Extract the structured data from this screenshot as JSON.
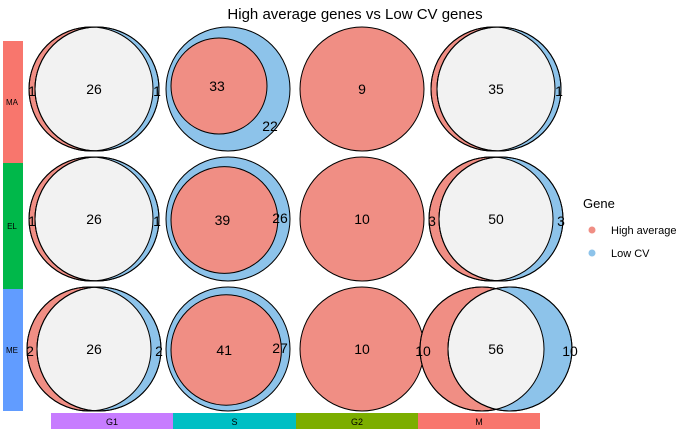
{
  "chart_data": {
    "type": "venn-grid",
    "title": "High average genes vs Low CV genes",
    "colors": {
      "high_average": "#F08E84",
      "low_cv": "#8DC3EA",
      "overlap": "#F2F2F2",
      "outline": "#000000"
    },
    "rows": [
      {
        "label": "MA",
        "color": "#F8766D"
      },
      {
        "label": "EL",
        "color": "#00B84A"
      },
      {
        "label": "ME",
        "color": "#619CFF"
      }
    ],
    "columns": [
      {
        "label": "G1",
        "color": "#C77CFF"
      },
      {
        "label": "S",
        "color": "#00BFC4"
      },
      {
        "label": "G2",
        "color": "#7CAE00"
      },
      {
        "label": "M",
        "color": "#F8766D"
      }
    ],
    "legend": {
      "title": "Gene",
      "position": "right",
      "items": [
        {
          "label": "High average",
          "color": "#F08E84"
        },
        {
          "label": "Low CV",
          "color": "#8DC3EA"
        }
      ]
    },
    "cells": [
      [
        {
          "high_only": 1,
          "overlap": 26,
          "low_only": 1,
          "shape": "balanced",
          "labels": {
            "high_only": "1",
            "overlap": "26",
            "low_only": "1"
          }
        },
        {
          "high_only": 0,
          "overlap": 33,
          "low_only": 22,
          "shape": "high_inside_low",
          "labels": {
            "high_only": "",
            "overlap": "33",
            "low_only": "22"
          }
        },
        {
          "high_only": 9,
          "overlap": 0,
          "low_only": 0,
          "shape": "high_only",
          "labels": {
            "high_only": "",
            "overlap": "9",
            "low_only": ""
          }
        },
        {
          "high_only": 0,
          "overlap": 35,
          "low_only": 1,
          "shape": "balanced",
          "labels": {
            "high_only": "",
            "overlap": "35",
            "low_only": "1"
          }
        }
      ],
      [
        {
          "high_only": 1,
          "overlap": 26,
          "low_only": 1,
          "shape": "balanced",
          "labels": {
            "high_only": "1",
            "overlap": "26",
            "low_only": "1"
          }
        },
        {
          "high_only": 0,
          "overlap": 39,
          "low_only": 26,
          "shape": "high_inside_low",
          "labels": {
            "high_only": "",
            "overlap": "39",
            "low_only": "26"
          }
        },
        {
          "high_only": 10,
          "overlap": 0,
          "low_only": 0,
          "shape": "high_only",
          "labels": {
            "high_only": "",
            "overlap": "10",
            "low_only": ""
          }
        },
        {
          "high_only": 3,
          "overlap": 50,
          "low_only": 3,
          "shape": "balanced",
          "labels": {
            "high_only": "3",
            "overlap": "50",
            "low_only": "3"
          }
        }
      ],
      [
        {
          "high_only": 2,
          "overlap": 26,
          "low_only": 2,
          "shape": "balanced",
          "labels": {
            "high_only": "2",
            "overlap": "26",
            "low_only": "2"
          }
        },
        {
          "high_only": 0,
          "overlap": 41,
          "low_only": 27,
          "shape": "high_inside_low",
          "labels": {
            "high_only": "",
            "overlap": "41",
            "low_only": "27"
          }
        },
        {
          "high_only": 10,
          "overlap": 0,
          "low_only": 0,
          "shape": "high_only",
          "labels": {
            "high_only": "",
            "overlap": "10",
            "low_only": ""
          }
        },
        {
          "high_only": 10,
          "overlap": 56,
          "low_only": 10,
          "shape": "balanced",
          "labels": {
            "high_only": "10",
            "overlap": "56",
            "low_only": "10"
          }
        }
      ]
    ]
  }
}
